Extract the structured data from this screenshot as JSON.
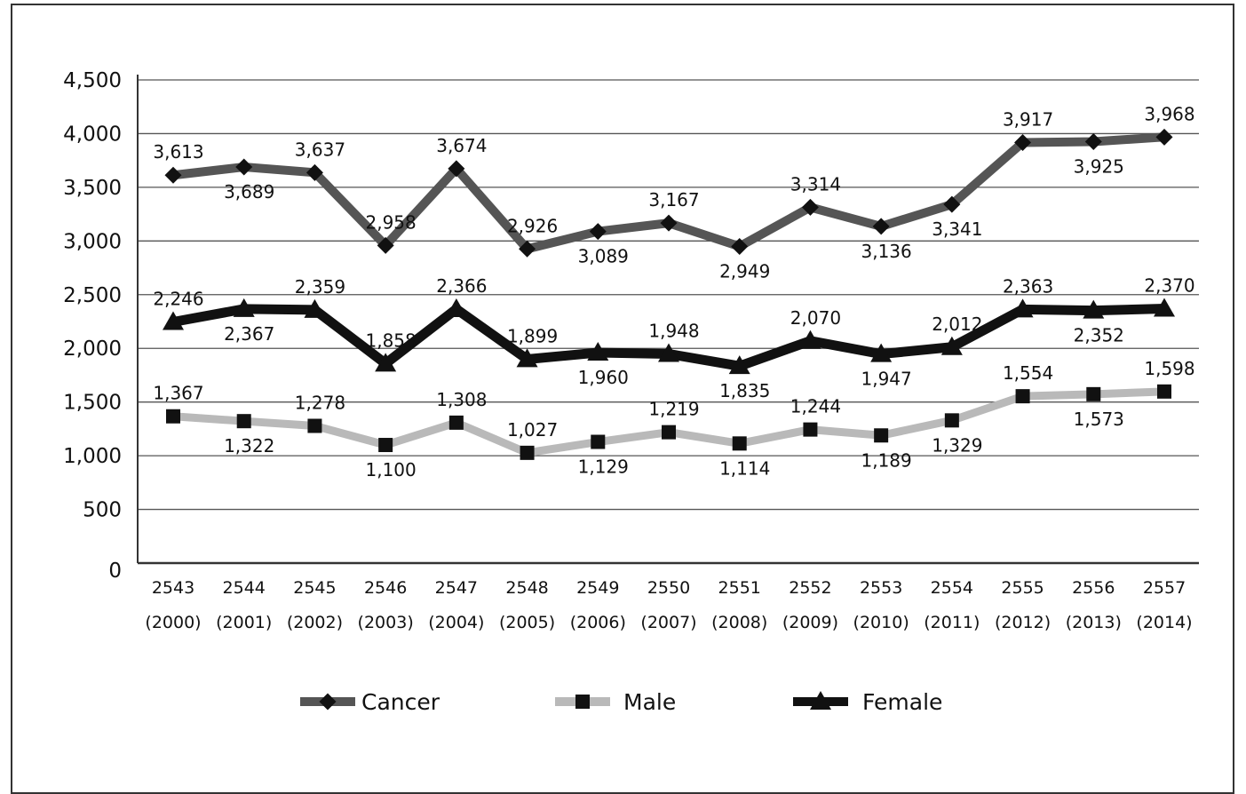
{
  "chart_data": {
    "type": "line",
    "title": "",
    "xlabel": "",
    "ylabel": "",
    "ylim": [
      0,
      4500
    ],
    "yticks": [
      "0",
      "500",
      "1,000",
      "1,500",
      "2,000",
      "2,500",
      "3,000",
      "3,500",
      "4,000",
      "4,500"
    ],
    "ytick_values": [
      0,
      500,
      1000,
      1500,
      2000,
      2500,
      3000,
      3500,
      4000,
      4500
    ],
    "grid": true,
    "legend_position": "bottom",
    "categories": [
      {
        "line1": "2543",
        "line2": "(2000)"
      },
      {
        "line1": "2544",
        "line2": "(2001)"
      },
      {
        "line1": "2545",
        "line2": "(2002)"
      },
      {
        "line1": "2546",
        "line2": "(2003)"
      },
      {
        "line1": "2547",
        "line2": "(2004)"
      },
      {
        "line1": "2548",
        "line2": "(2005)"
      },
      {
        "line1": "2549",
        "line2": "(2006)"
      },
      {
        "line1": "2550",
        "line2": "(2007)"
      },
      {
        "line1": "2551",
        "line2": "(2008)"
      },
      {
        "line1": "2552",
        "line2": "(2009)"
      },
      {
        "line1": "2553",
        "line2": "(2010)"
      },
      {
        "line1": "2554",
        "line2": "(2011)"
      },
      {
        "line1": "2555",
        "line2": "(2012)"
      },
      {
        "line1": "2556",
        "line2": "(2013)"
      },
      {
        "line1": "2557",
        "line2": "(2014)"
      }
    ],
    "series": [
      {
        "name": "Cancer",
        "color": "#555555",
        "marker": "diamond",
        "values": [
          3613,
          3689,
          3637,
          2958,
          3674,
          2926,
          3089,
          3167,
          2949,
          3314,
          3136,
          3341,
          3917,
          3925,
          3968
        ],
        "labels": [
          "3,613",
          "3,689",
          "3,637",
          "2,958",
          "3,674",
          "2,926",
          "3,089",
          "3,167",
          "2,949",
          "3,314",
          "3,136",
          "3,341",
          "3,917",
          "3,925",
          "3,968"
        ],
        "label_pos": [
          "above",
          "below",
          "above",
          "above",
          "above",
          "above",
          "below",
          "above",
          "below",
          "above",
          "below",
          "below",
          "above",
          "below",
          "above"
        ]
      },
      {
        "name": "Male",
        "color": "#b9b9b9",
        "marker": "square",
        "values": [
          1367,
          1322,
          1278,
          1100,
          1308,
          1027,
          1129,
          1219,
          1114,
          1244,
          1189,
          1329,
          1554,
          1573,
          1598
        ],
        "labels": [
          "1,367",
          "1,322",
          "1,278",
          "1,100",
          "1,308",
          "1,027",
          "1,129",
          "1,219",
          "1,114",
          "1,244",
          "1,189",
          "1,329",
          "1,554",
          "1,573",
          "1,598"
        ],
        "label_pos": [
          "above",
          "below",
          "above",
          "below",
          "above",
          "above",
          "below",
          "above",
          "below",
          "above",
          "below",
          "below",
          "above",
          "below",
          "above"
        ]
      },
      {
        "name": "Female",
        "color": "#111111",
        "marker": "triangle",
        "values": [
          2246,
          2367,
          2359,
          1858,
          2366,
          1899,
          1960,
          1948,
          1835,
          2070,
          1947,
          2012,
          2363,
          2352,
          2370
        ],
        "labels": [
          "2,246",
          "2,367",
          "2,359",
          "1,858",
          "2,366",
          "1,899",
          "1,960",
          "1,948",
          "1,835",
          "2,070",
          "1,947",
          "2,012",
          "2,363",
          "2,352",
          "2,370"
        ],
        "label_pos": [
          "above",
          "below",
          "above",
          "above",
          "above",
          "above",
          "below",
          "above",
          "below",
          "above",
          "below",
          "above",
          "above",
          "below",
          "above"
        ]
      }
    ]
  }
}
